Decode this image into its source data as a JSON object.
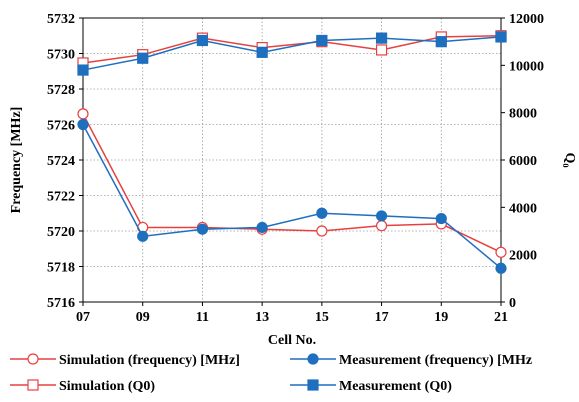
{
  "chart_data": {
    "type": "line",
    "x": [
      "07",
      "09",
      "11",
      "13",
      "15",
      "17",
      "19",
      "21"
    ],
    "xlabel": "Cell No.",
    "ylabel_left": "Frequency [MHz]",
    "ylabel_right": "Q₀",
    "ylim_left": [
      5716,
      5732
    ],
    "yticks_left": [
      5716,
      5718,
      5720,
      5722,
      5724,
      5726,
      5728,
      5730,
      5732
    ],
    "ylim_right": [
      0,
      12000
    ],
    "yticks_right": [
      0,
      2000,
      4000,
      6000,
      8000,
      10000,
      12000
    ],
    "grid": true,
    "legend_position": "bottom",
    "series": [
      {
        "name": "Simulation (frequency) [MHz]",
        "axis": "left",
        "marker": "circle",
        "filled": false,
        "color": "#e8403f",
        "values": [
          5726.6,
          5720.2,
          5720.2,
          5720.1,
          5720.0,
          5720.3,
          5720.4,
          5718.8
        ]
      },
      {
        "name": "Measurement (frequency) [MHz",
        "axis": "left",
        "marker": "circle",
        "filled": true,
        "color": "#1f6fbf",
        "values": [
          5726.0,
          5719.7,
          5720.1,
          5720.2,
          5721.0,
          5720.85,
          5720.7,
          5717.9
        ]
      },
      {
        "name": "Simulation (Q0)",
        "axis": "right",
        "marker": "square",
        "filled": false,
        "color": "#e8403f",
        "values": [
          10100,
          10450,
          11150,
          10750,
          11000,
          10650,
          11200,
          11250
        ]
      },
      {
        "name": "Measurement (Q0)",
        "axis": "right",
        "marker": "square",
        "filled": true,
        "color": "#1f6fbf",
        "values": [
          9800,
          10300,
          11050,
          10550,
          11050,
          11150,
          11000,
          11200
        ]
      }
    ]
  }
}
